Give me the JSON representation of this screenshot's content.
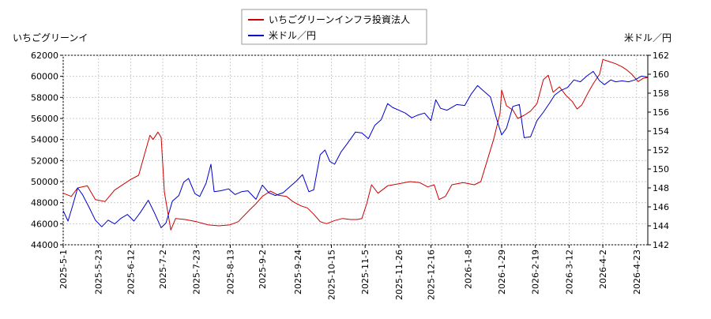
{
  "chart_data": {
    "type": "line",
    "title": "",
    "legend": {
      "placement": "top-center",
      "entries": [
        "いちごグリーンインフラ投資法人",
        "米ドル／円"
      ]
    },
    "left_axis_label": "いちごグリーンイ",
    "right_axis_label": "米ドル／円",
    "xlabel": "",
    "x_range": [
      "2025-05-01",
      "2026-04-30"
    ],
    "x_ticks": [
      "2025-5-1",
      "2025-5-23",
      "2025-6-12",
      "2025-7-2",
      "2025-7-23",
      "2025-8-13",
      "2025-9-2",
      "2025-9-24",
      "2025-10-15",
      "2025-11-5",
      "2025-11-26",
      "2025-12-16",
      "2026-1-8",
      "2026-1-29",
      "2026-2-19",
      "2026-3-12",
      "2026-4-2",
      "2026-4-23"
    ],
    "y_left": {
      "range": [
        44000,
        62000
      ],
      "ticks": [
        44000,
        46000,
        48000,
        50000,
        52000,
        54000,
        56000,
        58000,
        60000,
        62000
      ]
    },
    "y_right": {
      "range": [
        142,
        162
      ],
      "ticks": [
        142,
        144,
        146,
        148,
        150,
        152,
        154,
        156,
        158,
        160,
        162
      ]
    },
    "grid": true,
    "series": [
      {
        "name": "いちごグリーンインフラ投資法人",
        "axis": "left",
        "color": "#cc0000",
        "points": [
          [
            "2025-05-01",
            48900
          ],
          [
            "2025-05-06",
            48600
          ],
          [
            "2025-05-10",
            49400
          ],
          [
            "2025-05-16",
            49600
          ],
          [
            "2025-05-21",
            48300
          ],
          [
            "2025-05-27",
            48100
          ],
          [
            "2025-06-02",
            49200
          ],
          [
            "2025-06-06",
            49600
          ],
          [
            "2025-06-12",
            50200
          ],
          [
            "2025-06-17",
            50600
          ],
          [
            "2025-06-21",
            52800
          ],
          [
            "2025-06-24",
            54400
          ],
          [
            "2025-06-26",
            54000
          ],
          [
            "2025-06-29",
            54700
          ],
          [
            "2025-07-01",
            54200
          ],
          [
            "2025-07-03",
            49000
          ],
          [
            "2025-07-07",
            45400
          ],
          [
            "2025-07-10",
            46500
          ],
          [
            "2025-07-16",
            46400
          ],
          [
            "2025-07-23",
            46200
          ],
          [
            "2025-07-30",
            45900
          ],
          [
            "2025-08-06",
            45800
          ],
          [
            "2025-08-13",
            45900
          ],
          [
            "2025-08-18",
            46200
          ],
          [
            "2025-08-25",
            47300
          ],
          [
            "2025-08-29",
            47900
          ],
          [
            "2025-09-02",
            48600
          ],
          [
            "2025-09-07",
            49100
          ],
          [
            "2025-09-12",
            48700
          ],
          [
            "2025-09-17",
            48600
          ],
          [
            "2025-09-21",
            48100
          ],
          [
            "2025-09-26",
            47700
          ],
          [
            "2025-09-30",
            47500
          ],
          [
            "2025-10-04",
            46900
          ],
          [
            "2025-10-08",
            46200
          ],
          [
            "2025-10-12",
            46000
          ],
          [
            "2025-10-17",
            46300
          ],
          [
            "2025-10-22",
            46500
          ],
          [
            "2025-10-27",
            46400
          ],
          [
            "2025-10-31",
            46400
          ],
          [
            "2025-11-03",
            46500
          ],
          [
            "2025-11-06",
            47900
          ],
          [
            "2025-11-09",
            49700
          ],
          [
            "2025-11-13",
            48900
          ],
          [
            "2025-11-19",
            49600
          ],
          [
            "2025-11-26",
            49800
          ],
          [
            "2025-12-03",
            50000
          ],
          [
            "2025-12-09",
            49900
          ],
          [
            "2025-12-14",
            49500
          ],
          [
            "2025-12-18",
            49700
          ],
          [
            "2025-12-21",
            48300
          ],
          [
            "2025-12-25",
            48600
          ],
          [
            "2025-12-29",
            49700
          ],
          [
            "2026-01-05",
            49900
          ],
          [
            "2026-01-12",
            49700
          ],
          [
            "2026-01-16",
            50000
          ],
          [
            "2026-01-20",
            52000
          ],
          [
            "2026-01-24",
            54000
          ],
          [
            "2026-01-28",
            56500
          ],
          [
            "2026-01-29",
            58700
          ],
          [
            "2026-02-01",
            57200
          ],
          [
            "2026-02-05",
            56800
          ],
          [
            "2026-02-08",
            56000
          ],
          [
            "2026-02-12",
            56300
          ],
          [
            "2026-02-16",
            56700
          ],
          [
            "2026-02-20",
            57400
          ],
          [
            "2026-02-24",
            59700
          ],
          [
            "2026-02-27",
            60100
          ],
          [
            "2026-03-02",
            58500
          ],
          [
            "2026-03-06",
            59000
          ],
          [
            "2026-03-10",
            58200
          ],
          [
            "2026-03-14",
            57600
          ],
          [
            "2026-03-17",
            56900
          ],
          [
            "2026-03-20",
            57300
          ],
          [
            "2026-03-24",
            58500
          ],
          [
            "2026-03-27",
            59300
          ],
          [
            "2026-03-31",
            60200
          ],
          [
            "2026-04-02",
            61600
          ],
          [
            "2026-04-06",
            61400
          ],
          [
            "2026-04-10",
            61200
          ],
          [
            "2026-04-14",
            60900
          ],
          [
            "2026-04-17",
            60600
          ],
          [
            "2026-04-20",
            60200
          ],
          [
            "2026-04-24",
            59500
          ],
          [
            "2026-04-27",
            59800
          ],
          [
            "2026-04-30",
            59900
          ]
        ]
      },
      {
        "name": "米ドル／円",
        "axis": "right",
        "color": "#0000cc",
        "points": [
          [
            "2025-05-01",
            145.6
          ],
          [
            "2025-05-04",
            144.5
          ],
          [
            "2025-05-07",
            146.2
          ],
          [
            "2025-05-10",
            148.0
          ],
          [
            "2025-05-13",
            147.3
          ],
          [
            "2025-05-17",
            146.0
          ],
          [
            "2025-05-21",
            144.6
          ],
          [
            "2025-05-25",
            143.9
          ],
          [
            "2025-05-29",
            144.6
          ],
          [
            "2025-06-02",
            144.2
          ],
          [
            "2025-06-06",
            144.8
          ],
          [
            "2025-06-10",
            145.2
          ],
          [
            "2025-06-14",
            144.5
          ],
          [
            "2025-06-18",
            145.4
          ],
          [
            "2025-06-23",
            146.7
          ],
          [
            "2025-06-27",
            145.3
          ],
          [
            "2025-07-01",
            143.8
          ],
          [
            "2025-07-04",
            144.3
          ],
          [
            "2025-07-08",
            146.6
          ],
          [
            "2025-07-12",
            147.2
          ],
          [
            "2025-07-15",
            148.6
          ],
          [
            "2025-07-18",
            149.0
          ],
          [
            "2025-07-22",
            147.4
          ],
          [
            "2025-07-25",
            147.1
          ],
          [
            "2025-07-29",
            148.5
          ],
          [
            "2025-08-01",
            150.5
          ],
          [
            "2025-08-03",
            147.6
          ],
          [
            "2025-08-07",
            147.7
          ],
          [
            "2025-08-12",
            147.9
          ],
          [
            "2025-08-16",
            147.3
          ],
          [
            "2025-08-20",
            147.6
          ],
          [
            "2025-08-24",
            147.7
          ],
          [
            "2025-08-29",
            146.8
          ],
          [
            "2025-09-02",
            148.3
          ],
          [
            "2025-09-06",
            147.5
          ],
          [
            "2025-09-10",
            147.2
          ],
          [
            "2025-09-15",
            147.5
          ],
          [
            "2025-09-19",
            148.1
          ],
          [
            "2025-09-23",
            148.7
          ],
          [
            "2025-09-27",
            149.4
          ],
          [
            "2025-10-01",
            147.6
          ],
          [
            "2025-10-04",
            147.8
          ],
          [
            "2025-10-08",
            151.5
          ],
          [
            "2025-10-11",
            152.0
          ],
          [
            "2025-10-14",
            150.8
          ],
          [
            "2025-10-17",
            150.5
          ],
          [
            "2025-10-21",
            151.8
          ],
          [
            "2025-10-25",
            152.7
          ],
          [
            "2025-10-30",
            153.9
          ],
          [
            "2025-11-03",
            153.8
          ],
          [
            "2025-11-07",
            153.2
          ],
          [
            "2025-11-11",
            154.6
          ],
          [
            "2025-11-15",
            155.2
          ],
          [
            "2025-11-19",
            156.9
          ],
          [
            "2025-11-22",
            156.5
          ],
          [
            "2025-11-26",
            156.2
          ],
          [
            "2025-11-30",
            155.9
          ],
          [
            "2025-12-04",
            155.4
          ],
          [
            "2025-12-08",
            155.7
          ],
          [
            "2025-12-12",
            155.9
          ],
          [
            "2025-12-16",
            155.1
          ],
          [
            "2025-12-19",
            157.3
          ],
          [
            "2025-12-22",
            156.4
          ],
          [
            "2025-12-26",
            156.2
          ],
          [
            "2026-01-01",
            156.8
          ],
          [
            "2026-01-06",
            156.7
          ],
          [
            "2026-01-10",
            157.9
          ],
          [
            "2026-01-14",
            158.8
          ],
          [
            "2026-01-18",
            158.2
          ],
          [
            "2026-01-22",
            157.6
          ],
          [
            "2026-01-26",
            155.2
          ],
          [
            "2026-01-29",
            153.6
          ],
          [
            "2026-02-01",
            154.3
          ],
          [
            "2026-02-05",
            156.6
          ],
          [
            "2026-02-09",
            156.8
          ],
          [
            "2026-02-12",
            153.3
          ],
          [
            "2026-02-16",
            153.4
          ],
          [
            "2026-02-20",
            155.1
          ],
          [
            "2026-02-24",
            156.0
          ],
          [
            "2026-02-28",
            157.0
          ],
          [
            "2026-03-03",
            157.8
          ],
          [
            "2026-03-07",
            158.3
          ],
          [
            "2026-03-11",
            158.6
          ],
          [
            "2026-03-15",
            159.4
          ],
          [
            "2026-03-19",
            159.2
          ],
          [
            "2026-03-23",
            159.8
          ],
          [
            "2026-03-27",
            160.3
          ],
          [
            "2026-03-31",
            159.3
          ],
          [
            "2026-04-03",
            158.9
          ],
          [
            "2026-04-07",
            159.4
          ],
          [
            "2026-04-10",
            159.2
          ],
          [
            "2026-04-14",
            159.3
          ],
          [
            "2026-04-18",
            159.2
          ],
          [
            "2026-04-22",
            159.4
          ],
          [
            "2026-04-26",
            159.8
          ],
          [
            "2026-04-30",
            159.7
          ]
        ]
      }
    ]
  }
}
